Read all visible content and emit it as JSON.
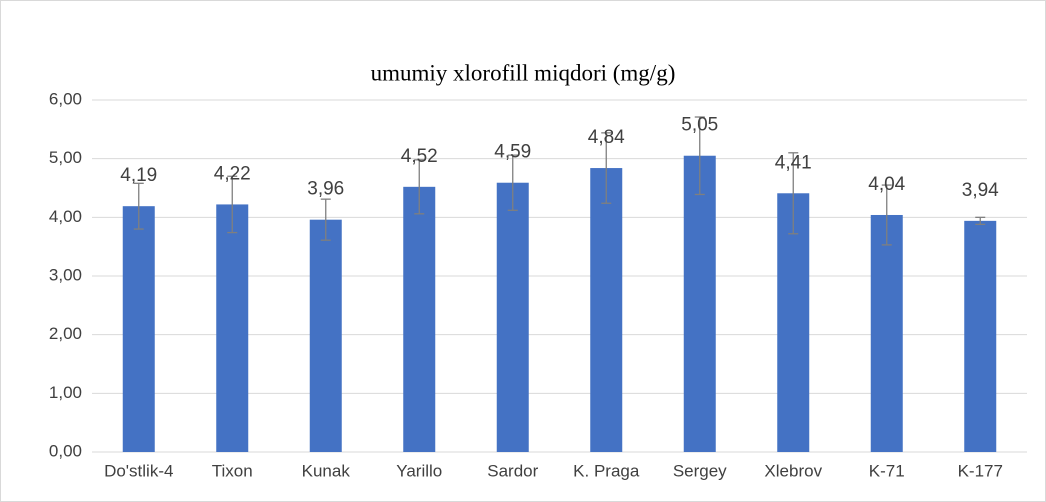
{
  "chart_data": {
    "type": "bar",
    "title": "umumiy xlorofill miqdori (mg/g)",
    "categories": [
      "Do'stlik-4",
      "Tixon",
      "Kunak",
      "Yarillo",
      "Sardor",
      "K. Praga",
      "Sergey",
      "Xlebrov",
      "K-71",
      "K-177"
    ],
    "values": [
      4.19,
      4.22,
      3.96,
      4.52,
      4.59,
      4.84,
      5.05,
      4.41,
      4.04,
      3.94
    ],
    "value_labels": [
      "4,19",
      "4,22",
      "3,96",
      "4,52",
      "4,59",
      "4,84",
      "5,05",
      "4,41",
      "4,04",
      "3,94"
    ],
    "errors": [
      0.39,
      0.48,
      0.35,
      0.46,
      0.47,
      0.6,
      0.66,
      0.69,
      0.51,
      0.06
    ],
    "color": "#4472c4",
    "error_color": "#7f7f7f",
    "ylim": [
      0,
      6
    ],
    "yticks": [
      {
        "value": 0,
        "label": "0,00"
      },
      {
        "value": 1,
        "label": "1,00"
      },
      {
        "value": 2,
        "label": "2,00"
      },
      {
        "value": 3,
        "label": "3,00"
      },
      {
        "value": 4,
        "label": "4,00"
      },
      {
        "value": 5,
        "label": "5,00"
      },
      {
        "value": 6,
        "label": "6,00"
      }
    ],
    "grid": true
  }
}
